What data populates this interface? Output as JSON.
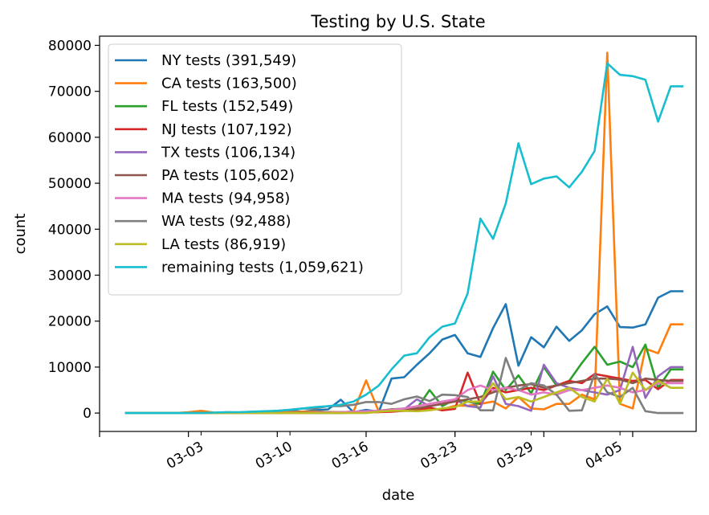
{
  "chart_data": {
    "type": "line",
    "title": "Testing by U.S. State",
    "xlabel": "date",
    "ylabel": "count",
    "ylim": [
      -4000,
      82000
    ],
    "xlim": [
      "2020-02-24",
      "2020-04-11"
    ],
    "x_ticks": [
      {
        "label": "03-03",
        "date": "2020-03-03"
      },
      {
        "label": "03-10",
        "date": "2020-03-10"
      },
      {
        "label": "03-16",
        "date": "2020-03-16"
      },
      {
        "label": "03-23",
        "date": "2020-03-23"
      },
      {
        "label": "03-29",
        "date": "2020-03-29"
      },
      {
        "label": "04-05",
        "date": "2020-04-05"
      }
    ],
    "y_ticks": [
      0,
      10000,
      20000,
      30000,
      40000,
      50000,
      60000,
      70000,
      80000
    ],
    "y_tick_labels": [
      "0",
      "10000",
      "20000",
      "30000",
      "40000",
      "50000",
      "60000",
      "70000",
      "80000"
    ],
    "legend_position": "top-left",
    "grid": false,
    "x": [
      "2020-02-26",
      "2020-02-27",
      "2020-02-28",
      "2020-02-29",
      "2020-03-01",
      "2020-03-02",
      "2020-03-03",
      "2020-03-04",
      "2020-03-05",
      "2020-03-06",
      "2020-03-07",
      "2020-03-08",
      "2020-03-09",
      "2020-03-10",
      "2020-03-11",
      "2020-03-12",
      "2020-03-13",
      "2020-03-14",
      "2020-03-15",
      "2020-03-16",
      "2020-03-17",
      "2020-03-18",
      "2020-03-19",
      "2020-03-20",
      "2020-03-21",
      "2020-03-22",
      "2020-03-23",
      "2020-03-24",
      "2020-03-25",
      "2020-03-26",
      "2020-03-27",
      "2020-03-28",
      "2020-03-29",
      "2020-03-30",
      "2020-03-31",
      "2020-04-01",
      "2020-04-02",
      "2020-04-03",
      "2020-04-04",
      "2020-04-05",
      "2020-04-06",
      "2020-04-07",
      "2020-04-08",
      "2020-04-09",
      "2020-04-10"
    ],
    "series": [
      {
        "name": "NY tests (391,549)",
        "color": "#1f77b4",
        "values": [
          0,
          0,
          0,
          0,
          0,
          0,
          0,
          0,
          100,
          100,
          150,
          200,
          300,
          500,
          300,
          600,
          800,
          2900,
          200,
          700,
          300,
          7500,
          7800,
          10500,
          13000,
          16000,
          17000,
          13000,
          12200,
          18500,
          23700,
          10300,
          16500,
          14300,
          18800,
          15700,
          18000,
          21500,
          23200,
          18700,
          18600,
          19300,
          25100,
          26500,
          26500
        ]
      },
      {
        "name": "CA tests (163,500)",
        "color": "#ff7f0e",
        "values": [
          0,
          0,
          0,
          0,
          0,
          200,
          500,
          100,
          100,
          100,
          200,
          200,
          300,
          200,
          300,
          300,
          200,
          200,
          300,
          7100,
          300,
          500,
          800,
          700,
          900,
          800,
          1600,
          1600,
          2000,
          2500,
          1000,
          3500,
          1000,
          800,
          2000,
          2000,
          4000,
          3000,
          78400,
          2000,
          1000,
          14000,
          13000,
          19300,
          19300
        ]
      },
      {
        "name": "FL tests (152,549)",
        "color": "#2ca02c",
        "values": [
          0,
          0,
          0,
          0,
          0,
          0,
          0,
          0,
          0,
          0,
          0,
          0,
          0,
          0,
          0,
          100,
          100,
          100,
          100,
          200,
          500,
          800,
          1000,
          1000,
          5000,
          1500,
          3000,
          2500,
          2000,
          9000,
          5000,
          8200,
          4300,
          10000,
          6000,
          7000,
          10900,
          14400,
          10500,
          11200,
          10000,
          14900,
          5500,
          9500,
          9500
        ]
      },
      {
        "name": "NJ tests (107,192)",
        "color": "#d62728",
        "values": [
          0,
          0,
          0,
          0,
          0,
          0,
          0,
          0,
          0,
          0,
          0,
          0,
          0,
          0,
          0,
          0,
          0,
          0,
          100,
          100,
          200,
          300,
          500,
          500,
          1200,
          600,
          900,
          8800,
          2000,
          5500,
          4500,
          5000,
          5500,
          5000,
          6000,
          7000,
          6500,
          8500,
          8000,
          7500,
          7000,
          7200,
          5200,
          7200,
          7200
        ]
      },
      {
        "name": "TX tests (106,134)",
        "color": "#9467bd",
        "values": [
          0,
          0,
          0,
          0,
          0,
          0,
          0,
          0,
          0,
          0,
          0,
          0,
          0,
          0,
          0,
          0,
          0,
          0,
          200,
          300,
          400,
          500,
          800,
          3000,
          1500,
          2000,
          3000,
          1500,
          1200,
          8000,
          2000,
          1500,
          500,
          10500,
          6500,
          5500,
          5000,
          4500,
          4000,
          5000,
          14400,
          3300,
          8000,
          10000,
          10000
        ]
      },
      {
        "name": "PA tests (105,602)",
        "color": "#8c564b",
        "values": [
          0,
          0,
          0,
          0,
          0,
          0,
          0,
          0,
          0,
          0,
          0,
          0,
          0,
          0,
          100,
          100,
          200,
          200,
          300,
          300,
          500,
          800,
          900,
          1000,
          1500,
          2000,
          2500,
          3000,
          3500,
          4500,
          5500,
          6000,
          6300,
          5500,
          6000,
          6500,
          7000,
          7500,
          7500,
          7300,
          6500,
          7500,
          7200,
          7000,
          7000
        ]
      },
      {
        "name": "MA tests (94,958)",
        "color": "#e377c2",
        "values": [
          0,
          0,
          0,
          0,
          0,
          0,
          0,
          0,
          0,
          0,
          0,
          0,
          0,
          0,
          0,
          100,
          100,
          200,
          300,
          400,
          500,
          700,
          1000,
          1500,
          2000,
          2500,
          3000,
          5000,
          6000,
          5000,
          5500,
          5000,
          4000,
          4500,
          4000,
          5000,
          5000,
          5500,
          6000,
          5500,
          4500,
          5000,
          6500,
          6500,
          6500
        ]
      },
      {
        "name": "WA tests (92,488)",
        "color": "#7f7f7f",
        "values": [
          0,
          0,
          0,
          0,
          0,
          0,
          0,
          0,
          200,
          100,
          300,
          300,
          500,
          700,
          1000,
          1000,
          1500,
          1500,
          1800,
          2400,
          2400,
          2000,
          3000,
          3600,
          2600,
          4000,
          3900,
          3500,
          600,
          600,
          12000,
          5000,
          6500,
          6000,
          4000,
          500,
          600,
          8500,
          4500,
          3500,
          5500,
          400,
          0,
          0,
          0
        ]
      },
      {
        "name": "LA tests (86,919)",
        "color": "#bcbd22",
        "values": [
          0,
          0,
          0,
          0,
          0,
          0,
          0,
          0,
          0,
          0,
          0,
          0,
          0,
          0,
          0,
          0,
          0,
          0,
          0,
          0,
          300,
          500,
          500,
          400,
          600,
          1000,
          1300,
          2500,
          2500,
          6500,
          3000,
          3500,
          2500,
          3500,
          4500,
          5500,
          3500,
          2500,
          7500,
          2000,
          8800,
          5000,
          7000,
          5500,
          5500
        ]
      },
      {
        "name": "remaining tests (1,059,621)",
        "color": "#17becf",
        "values": [
          0,
          0,
          0,
          0,
          0,
          0,
          0,
          100,
          200,
          200,
          300,
          400,
          500,
          700,
          1000,
          1300,
          1500,
          1800,
          2500,
          4000,
          6000,
          9500,
          12500,
          13000,
          16500,
          18800,
          19500,
          26000,
          42300,
          37900,
          45600,
          58700,
          49800,
          51000,
          51500,
          49100,
          52500,
          57000,
          76100,
          73600,
          73300,
          72500,
          63400,
          71100,
          71100
        ]
      }
    ]
  }
}
